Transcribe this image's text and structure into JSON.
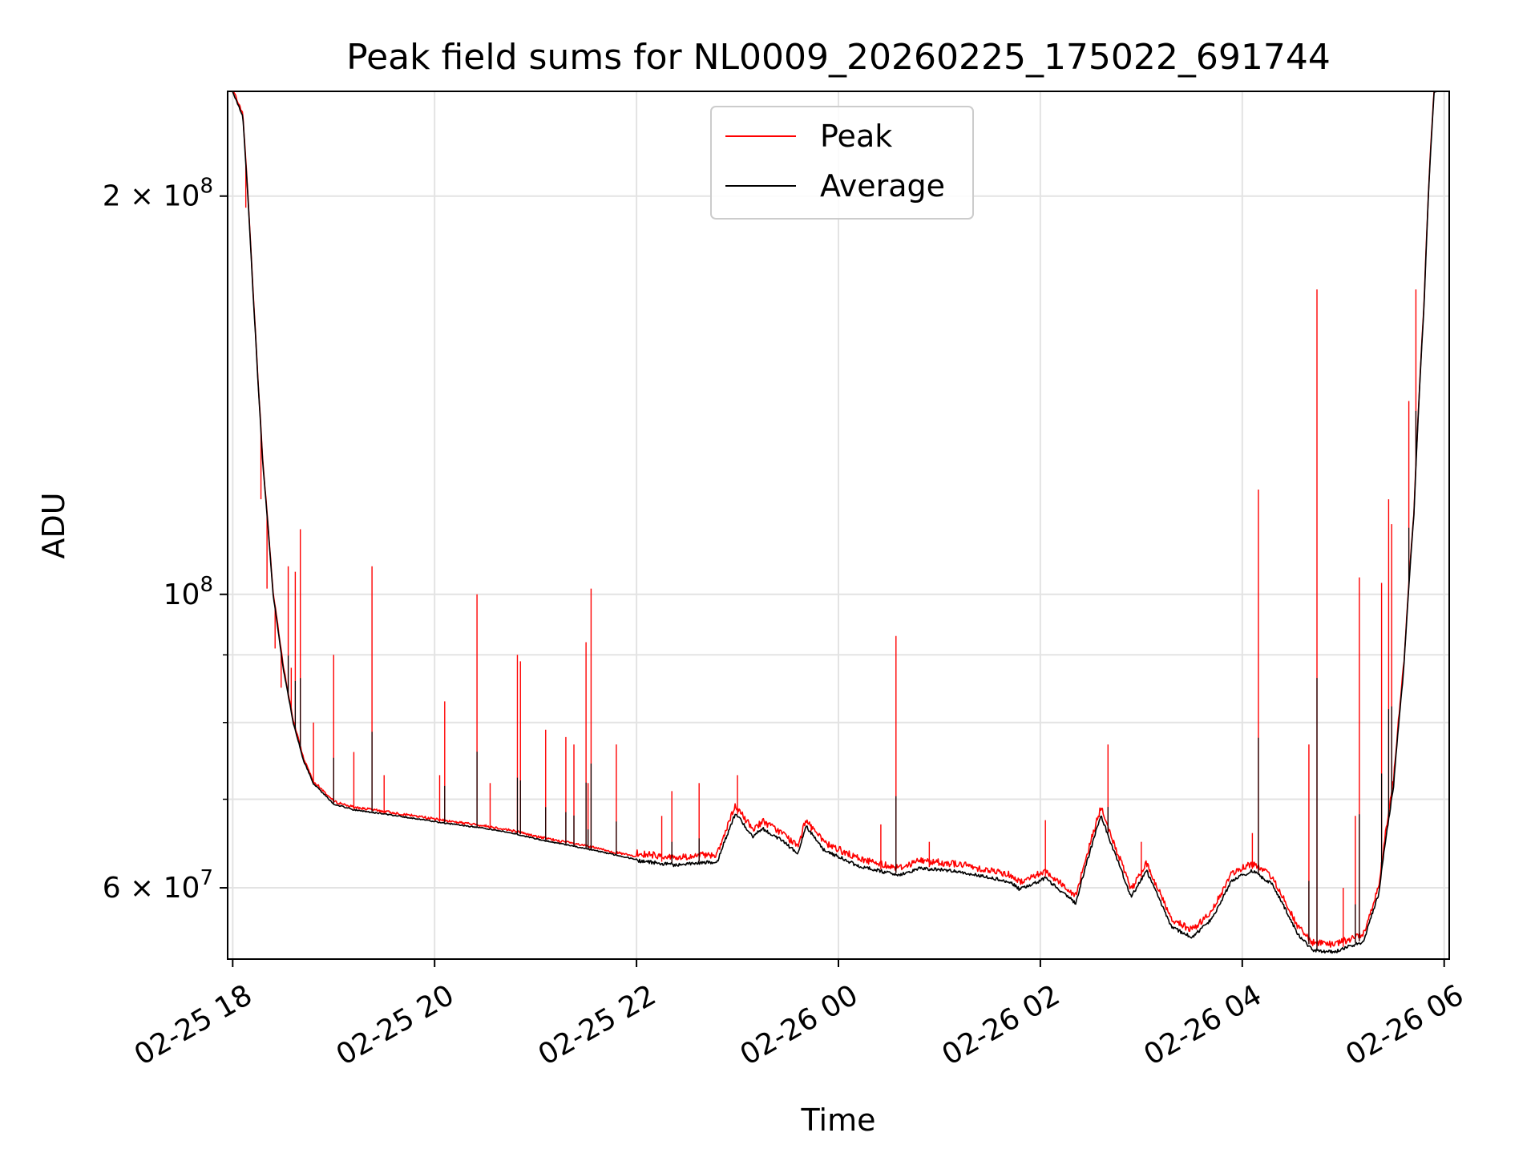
{
  "chart_data": {
    "type": "line",
    "title": "Peak field sums for NL0009_20260225_175022_691744",
    "xlabel": "Time",
    "ylabel": "ADU",
    "yscale": "log",
    "ylim": [
      53000000,
      240000000
    ],
    "xlim_hours": [
      -0.05,
      12.05
    ],
    "x_origin": "02-25 18:00",
    "x_ticks": [
      {
        "hour": 0,
        "label": "02-25 18"
      },
      {
        "hour": 2,
        "label": "02-25 20"
      },
      {
        "hour": 4,
        "label": "02-25 22"
      },
      {
        "hour": 6,
        "label": "02-26 00"
      },
      {
        "hour": 8,
        "label": "02-26 02"
      },
      {
        "hour": 10,
        "label": "02-26 04"
      },
      {
        "hour": 12,
        "label": "02-26 06"
      }
    ],
    "y_major_ticks": [
      {
        "value": 60000000,
        "mantissa": "6",
        "exponent": "7",
        "label": "6 × 10^7"
      },
      {
        "value": 100000000,
        "mantissa": "",
        "exponent": "8",
        "label": "10^8"
      },
      {
        "value": 200000000,
        "mantissa": "2",
        "exponent": "8",
        "label": "2 × 10^8"
      }
    ],
    "y_minor_ticks": [
      70000000,
      80000000,
      90000000
    ],
    "grid": true,
    "legend_position": "top-center",
    "series": [
      {
        "name": "Average",
        "color": "#000000",
        "points_hour_mega": [
          [
            0.0,
            240
          ],
          [
            0.1,
            230
          ],
          [
            0.15,
            200
          ],
          [
            0.2,
            170
          ],
          [
            0.25,
            145
          ],
          [
            0.3,
            125
          ],
          [
            0.4,
            100
          ],
          [
            0.5,
            88
          ],
          [
            0.6,
            80
          ],
          [
            0.7,
            75
          ],
          [
            0.8,
            72
          ],
          [
            1.0,
            69.5
          ],
          [
            1.2,
            68.8
          ],
          [
            1.5,
            68.3
          ],
          [
            1.9,
            67.6
          ],
          [
            2.05,
            67.3
          ],
          [
            2.5,
            66.6
          ],
          [
            2.8,
            66.0
          ],
          [
            3.0,
            65.4
          ],
          [
            3.5,
            64.3
          ],
          [
            4.0,
            63.1
          ],
          [
            4.4,
            62.6
          ],
          [
            4.8,
            63.0
          ],
          [
            4.98,
            68.5
          ],
          [
            5.15,
            65.8
          ],
          [
            5.25,
            66.7
          ],
          [
            5.45,
            65.3
          ],
          [
            5.6,
            63.8
          ],
          [
            5.68,
            67.0
          ],
          [
            5.85,
            64.3
          ],
          [
            6.2,
            62.5
          ],
          [
            6.6,
            61.5
          ],
          [
            6.8,
            62.3
          ],
          [
            7.2,
            61.9
          ],
          [
            7.7,
            60.8
          ],
          [
            7.8,
            60.0
          ],
          [
            8.05,
            61.2
          ],
          [
            8.35,
            58.6
          ],
          [
            8.6,
            68.3
          ],
          [
            8.7,
            65.0
          ],
          [
            8.9,
            59.2
          ],
          [
            9.05,
            62.0
          ],
          [
            9.3,
            56.2
          ],
          [
            9.5,
            55.2
          ],
          [
            9.7,
            57.0
          ],
          [
            9.9,
            61.0
          ],
          [
            10.1,
            62.0
          ],
          [
            10.3,
            60.5
          ],
          [
            10.55,
            55.5
          ],
          [
            10.7,
            54.0
          ],
          [
            10.9,
            53.8
          ],
          [
            11.2,
            54.8
          ],
          [
            11.35,
            59.5
          ],
          [
            11.5,
            72.0
          ],
          [
            11.6,
            88.0
          ],
          [
            11.7,
            115.0
          ],
          [
            11.8,
            165.0
          ],
          [
            11.85,
            205.0
          ],
          [
            11.9,
            240.0
          ],
          [
            12.02,
            242.0
          ]
        ]
      },
      {
        "name": "Peak",
        "color": "#ff0000",
        "spikes_hour_mega": [
          [
            0.13,
            196
          ],
          [
            0.28,
            118
          ],
          [
            0.34,
            101
          ],
          [
            0.42,
            91
          ],
          [
            0.48,
            85
          ],
          [
            0.55,
            105
          ],
          [
            0.58,
            88
          ],
          [
            0.62,
            104
          ],
          [
            0.67,
            112
          ],
          [
            0.8,
            80
          ],
          [
            1.0,
            90
          ],
          [
            1.2,
            76
          ],
          [
            1.38,
            105
          ],
          [
            1.5,
            73
          ],
          [
            2.05,
            73
          ],
          [
            2.1,
            83
          ],
          [
            2.42,
            100
          ],
          [
            2.55,
            72
          ],
          [
            2.82,
            90
          ],
          [
            2.85,
            89
          ],
          [
            3.1,
            79
          ],
          [
            3.3,
            78
          ],
          [
            3.38,
            77
          ],
          [
            3.5,
            92
          ],
          [
            3.52,
            72
          ],
          [
            3.55,
            101
          ],
          [
            3.8,
            77
          ],
          [
            4.25,
            68
          ],
          [
            4.35,
            71
          ],
          [
            4.62,
            72
          ],
          [
            5.0,
            73
          ],
          [
            6.42,
            67
          ],
          [
            5.73,
            67
          ],
          [
            6.57,
            93
          ],
          [
            6.9,
            65
          ],
          [
            8.05,
            67.5
          ],
          [
            8.67,
            77
          ],
          [
            9.0,
            65
          ],
          [
            10.1,
            66
          ],
          [
            10.16,
            120
          ],
          [
            10.66,
            77
          ],
          [
            10.74,
            170
          ],
          [
            11.0,
            60
          ],
          [
            11.12,
            68
          ],
          [
            11.16,
            103
          ],
          [
            11.38,
            102
          ],
          [
            11.45,
            118
          ],
          [
            11.48,
            113
          ],
          [
            11.65,
            140
          ],
          [
            11.72,
            170
          ]
        ]
      }
    ]
  }
}
